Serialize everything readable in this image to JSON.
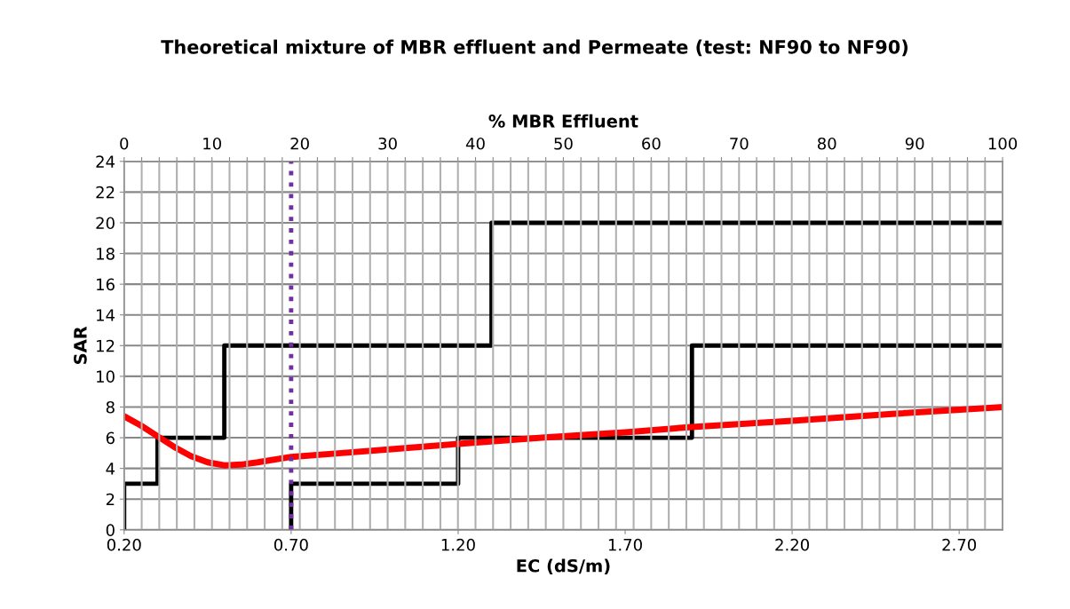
{
  "chart_data": {
    "type": "line",
    "title": "Theoretical mixture of MBR effluent and Permeate (test: NF90 to NF90)",
    "xlabel": "EC (dS/m)",
    "ylabel": "SAR",
    "x2label": "% MBR Effluent",
    "xlim": [
      0.2,
      2.83
    ],
    "xticks": [
      {
        "value": 0.2,
        "label": "0.20"
      },
      {
        "value": 0.7,
        "label": "0.70"
      },
      {
        "value": 1.2,
        "label": "1.20"
      },
      {
        "value": 1.7,
        "label": "1.70"
      },
      {
        "value": 2.2,
        "label": "2.20"
      },
      {
        "value": 2.7,
        "label": "2.70"
      }
    ],
    "ylim": [
      0,
      24
    ],
    "yticks": [
      0,
      2,
      4,
      6,
      8,
      10,
      12,
      14,
      16,
      18,
      20,
      22,
      24
    ],
    "x2lim": [
      0,
      100
    ],
    "x2ticks": [
      0,
      {
        "value": 2,
        "label": null
      },
      {
        "value": 4,
        "label": null
      },
      {
        "value": 6,
        "label": null
      },
      {
        "value": 8,
        "label": null
      },
      10,
      {
        "value": 12,
        "label": null
      },
      {
        "value": 14,
        "label": null
      },
      {
        "value": 16,
        "label": null
      },
      {
        "value": 18,
        "label": null
      },
      20,
      {
        "value": 22,
        "label": null
      },
      {
        "value": 24,
        "label": null
      },
      {
        "value": 26,
        "label": null
      },
      {
        "value": 28,
        "label": null
      },
      30,
      {
        "value": 32,
        "label": null
      },
      {
        "value": 34,
        "label": null
      },
      {
        "value": 36,
        "label": null
      },
      {
        "value": 38,
        "label": null
      },
      40,
      {
        "value": 42,
        "label": null
      },
      {
        "value": 44,
        "label": null
      },
      {
        "value": 46,
        "label": null
      },
      {
        "value": 48,
        "label": null
      },
      50,
      {
        "value": 52,
        "label": null
      },
      {
        "value": 54,
        "label": null
      },
      {
        "value": 56,
        "label": null
      },
      {
        "value": 58,
        "label": null
      },
      60,
      {
        "value": 62,
        "label": null
      },
      {
        "value": 64,
        "label": null
      },
      {
        "value": 66,
        "label": null
      },
      {
        "value": 68,
        "label": null
      },
      70,
      {
        "value": 72,
        "label": null
      },
      {
        "value": 74,
        "label": null
      },
      {
        "value": 76,
        "label": null
      },
      {
        "value": 78,
        "label": null
      },
      80,
      {
        "value": 82,
        "label": null
      },
      {
        "value": 84,
        "label": null
      },
      {
        "value": 86,
        "label": null
      },
      {
        "value": 88,
        "label": null
      },
      90,
      {
        "value": 92,
        "label": null
      },
      {
        "value": 94,
        "label": null
      },
      {
        "value": 96,
        "label": null
      },
      {
        "value": 98,
        "label": null
      },
      100
    ],
    "grid": true,
    "marker": "none",
    "line_style": "solid",
    "series": [
      {
        "color": "#000000",
        "x": [
          0.2,
          0.2,
          0.3,
          0.3,
          0.5,
          0.5,
          1.3,
          1.3,
          2.83
        ],
        "values": [
          0,
          3,
          3,
          6,
          6,
          12,
          12,
          20,
          20
        ]
      },
      {
        "color": "#000000",
        "x": [
          0.7,
          0.7,
          1.2,
          1.2,
          1.9,
          1.9,
          2.83
        ],
        "values": [
          0,
          3,
          3,
          6,
          6,
          12,
          12
        ]
      },
      {
        "color": "#ff0000",
        "x": [
          0.2,
          0.25,
          0.3,
          0.35,
          0.4,
          0.45,
          0.5,
          0.55,
          0.6,
          0.7,
          0.85,
          1.0,
          1.2,
          1.45,
          1.7,
          1.9,
          2.2,
          2.5,
          2.83
        ],
        "values": [
          7.4,
          6.8,
          6.1,
          5.4,
          4.8,
          4.4,
          4.2,
          4.25,
          4.4,
          4.75,
          5.0,
          5.25,
          5.6,
          6.0,
          6.35,
          6.7,
          7.1,
          7.55,
          8.0
        ]
      }
    ],
    "ref_lines": [
      {
        "axis": "x",
        "value": 0.7,
        "color": "#7030a0",
        "line_style": "dotted"
      }
    ]
  }
}
